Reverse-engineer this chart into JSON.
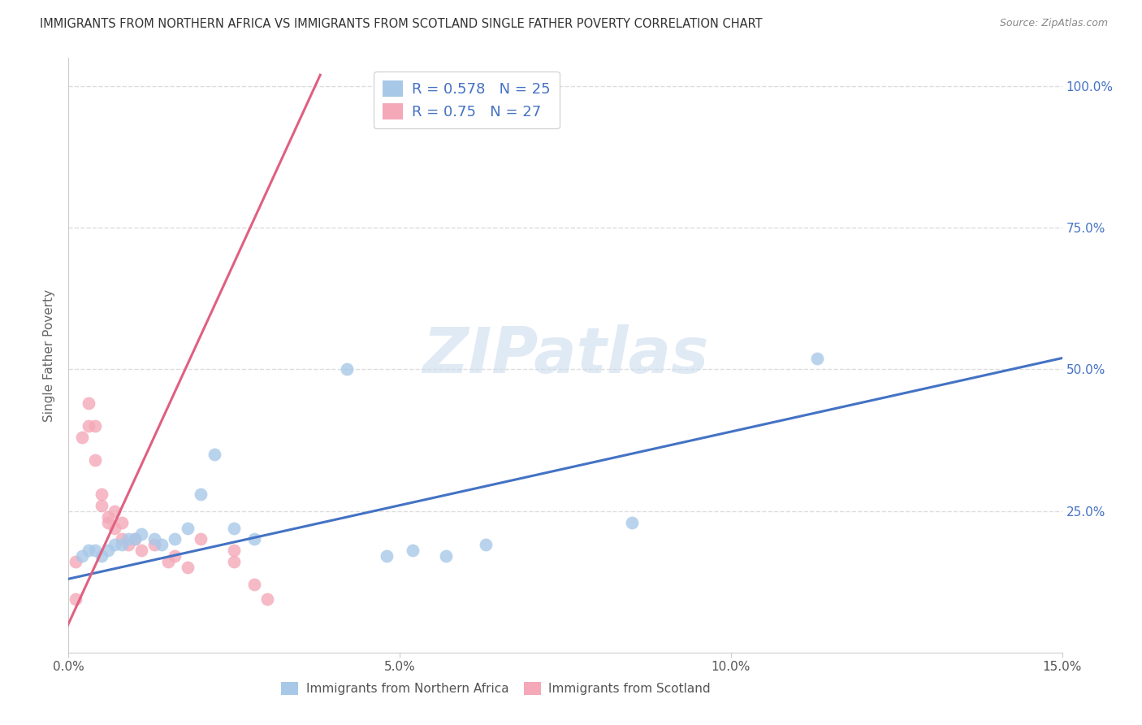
{
  "title": "IMMIGRANTS FROM NORTHERN AFRICA VS IMMIGRANTS FROM SCOTLAND SINGLE FATHER POVERTY CORRELATION CHART",
  "source": "Source: ZipAtlas.com",
  "ylabel": "Single Father Poverty",
  "legend_label1": "Immigrants from Northern Africa",
  "legend_label2": "Immigrants from Scotland",
  "R1": 0.578,
  "N1": 25,
  "R2": 0.75,
  "N2": 27,
  "color1": "#a8c8e8",
  "color2": "#f4a8b8",
  "line_color1": "#4472c4",
  "line_color2": "#e06080",
  "xlim": [
    0.0,
    0.15
  ],
  "ylim": [
    0.0,
    1.05
  ],
  "xtick_labels": [
    "0.0%",
    "5.0%",
    "10.0%",
    "15.0%"
  ],
  "xtick_vals": [
    0.0,
    0.05,
    0.1,
    0.15
  ],
  "ytick_vals": [
    0.25,
    0.5,
    0.75,
    1.0
  ],
  "ytick_labels": [
    "25.0%",
    "50.0%",
    "75.0%",
    "100.0%"
  ],
  "blue_x": [
    0.002,
    0.003,
    0.004,
    0.005,
    0.006,
    0.007,
    0.008,
    0.009,
    0.01,
    0.011,
    0.013,
    0.014,
    0.016,
    0.018,
    0.02,
    0.022,
    0.025,
    0.028,
    0.042,
    0.048,
    0.052,
    0.057,
    0.063,
    0.085,
    0.113
  ],
  "blue_y": [
    0.17,
    0.18,
    0.18,
    0.17,
    0.18,
    0.19,
    0.19,
    0.2,
    0.2,
    0.21,
    0.2,
    0.19,
    0.2,
    0.22,
    0.28,
    0.35,
    0.22,
    0.2,
    0.5,
    0.17,
    0.18,
    0.17,
    0.19,
    0.23,
    0.52
  ],
  "pink_x": [
    0.001,
    0.001,
    0.002,
    0.003,
    0.003,
    0.004,
    0.004,
    0.005,
    0.005,
    0.006,
    0.006,
    0.007,
    0.007,
    0.008,
    0.008,
    0.009,
    0.01,
    0.011,
    0.013,
    0.015,
    0.016,
    0.018,
    0.02,
    0.025,
    0.025,
    0.028,
    0.03
  ],
  "pink_y": [
    0.095,
    0.16,
    0.38,
    0.4,
    0.44,
    0.34,
    0.4,
    0.28,
    0.26,
    0.24,
    0.23,
    0.25,
    0.22,
    0.23,
    0.2,
    0.19,
    0.2,
    0.18,
    0.19,
    0.16,
    0.17,
    0.15,
    0.2,
    0.18,
    0.16,
    0.12,
    0.095
  ],
  "blue_line_x": [
    0.0,
    0.15
  ],
  "blue_line_y": [
    0.13,
    0.52
  ],
  "pink_line_x": [
    -0.002,
    0.038
  ],
  "pink_line_y": [
    0.0,
    1.02
  ],
  "watermark": "ZIPatlas",
  "background_color": "#ffffff",
  "grid_color": "#dddddd",
  "title_color": "#333333",
  "axis_label_color": "#666666",
  "right_axis_color": "#4472c4"
}
